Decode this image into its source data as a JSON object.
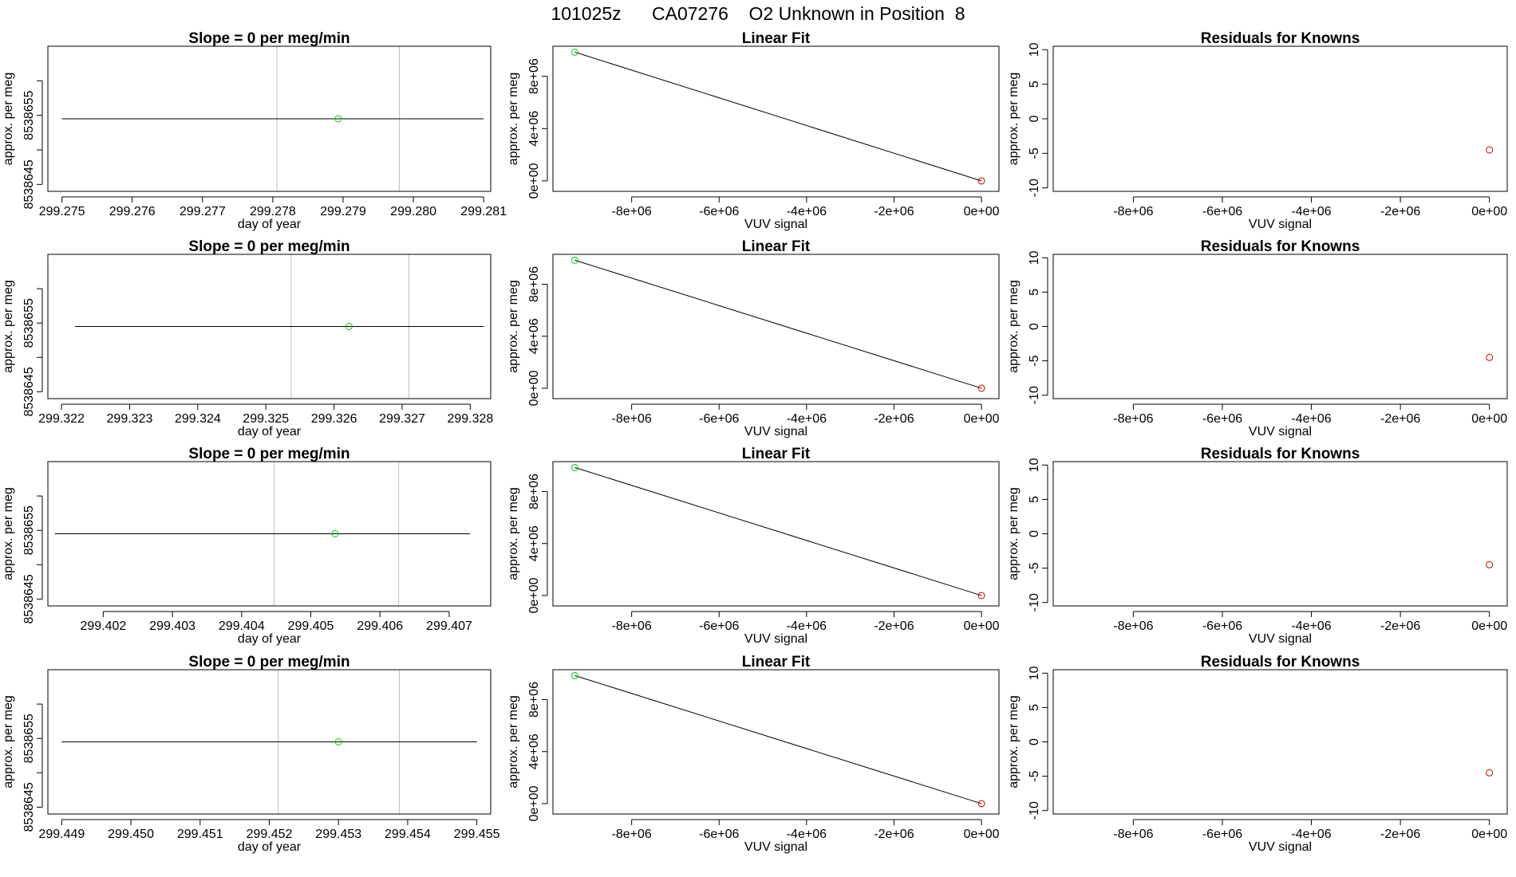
{
  "figure": {
    "title": "101025z      CA07276    O2 Unknown in Position  8",
    "colors": {
      "ink": "#000000",
      "grid": "#bebebe",
      "known": "#00cd00",
      "unknown": "#cd0000"
    }
  },
  "chart_data": [
    {
      "panel": "time",
      "row": 1,
      "type": "line",
      "title": "Slope =  0  per meg/min",
      "xlabel": "day of year",
      "ylabel": "approx. per meg",
      "xlim": [
        299.2748,
        299.2811
      ],
      "ylim": [
        8538644,
        8538665
      ],
      "x_ticks": [
        "299.275",
        "299.276",
        "299.277",
        "299.278",
        "299.279",
        "299.280",
        "299.281"
      ],
      "y_ticks": [
        "8538645",
        "8538655"
      ],
      "vlines": [
        299.27806,
        299.2798
      ],
      "fit_line": {
        "x": [
          299.275,
          299.281
        ],
        "y": [
          8538654.5,
          8538654.5
        ]
      },
      "points": [
        {
          "x": 299.27893,
          "y": 8538654.5,
          "color": "green"
        }
      ]
    },
    {
      "panel": "linear",
      "row": 1,
      "type": "scatter",
      "title": "Linear Fit",
      "xlabel": "VUV signal",
      "ylabel": "approx. per meg",
      "xlim": [
        -9800000.0,
        400000.0
      ],
      "ylim": [
        -800000.0,
        10300000.0
      ],
      "x_ticks": [
        "-8e+06",
        "-6e+06",
        "-4e+06",
        "-2e+06",
        "0e+00"
      ],
      "y_ticks": [
        "0e+00",
        "4e+06",
        "8e+06"
      ],
      "fit_line": {
        "x": [
          -9300000.0,
          0
        ],
        "y": [
          9850000.0,
          0
        ]
      },
      "points": [
        {
          "x": -9300000.0,
          "y": 9850000.0,
          "color": "green"
        },
        {
          "x": 0,
          "y": 0,
          "color": "red"
        }
      ]
    },
    {
      "panel": "residuals",
      "row": 1,
      "type": "scatter",
      "title": "Residuals for Knowns",
      "xlabel": "VUV signal",
      "ylabel": "approx. per meg",
      "xlim": [
        -9800000.0,
        400000.0
      ],
      "ylim": [
        -10.5,
        10.5
      ],
      "x_ticks": [
        "-8e+06",
        "-6e+06",
        "-4e+06",
        "-2e+06",
        "0e+00"
      ],
      "y_ticks": [
        "-10",
        "-5",
        "0",
        "5",
        "10"
      ],
      "points": [
        {
          "x": 0,
          "y": -4.5,
          "color": "red"
        }
      ]
    },
    {
      "panel": "time",
      "row": 2,
      "type": "line",
      "title": "Slope =  0  per meg/min",
      "xlabel": "day of year",
      "ylabel": "approx. per meg",
      "xlim": [
        299.3218,
        299.3283
      ],
      "ylim": [
        8538644,
        8538665
      ],
      "x_ticks": [
        "299.322",
        "299.323",
        "299.324",
        "299.325",
        "299.326",
        "299.327",
        "299.328"
      ],
      "y_ticks": [
        "8538645",
        "8538655"
      ],
      "vlines": [
        299.32537,
        299.3271
      ],
      "fit_line": {
        "x": [
          299.3222,
          299.3282
        ],
        "y": [
          8538654.5,
          8538654.5
        ]
      },
      "points": [
        {
          "x": 299.32622,
          "y": 8538654.5,
          "color": "green"
        }
      ]
    },
    {
      "panel": "linear",
      "row": 2,
      "type": "scatter",
      "title": "Linear Fit",
      "xlabel": "VUV signal",
      "ylabel": "approx. per meg",
      "xlim": [
        -9800000.0,
        400000.0
      ],
      "ylim": [
        -800000.0,
        10300000.0
      ],
      "x_ticks": [
        "-8e+06",
        "-6e+06",
        "-4e+06",
        "-2e+06",
        "0e+00"
      ],
      "y_ticks": [
        "0e+00",
        "4e+06",
        "8e+06"
      ],
      "fit_line": {
        "x": [
          -9300000.0,
          0
        ],
        "y": [
          9850000.0,
          0
        ]
      },
      "points": [
        {
          "x": -9300000.0,
          "y": 9850000.0,
          "color": "green"
        },
        {
          "x": 0,
          "y": 0,
          "color": "red"
        }
      ]
    },
    {
      "panel": "residuals",
      "row": 2,
      "type": "scatter",
      "title": "Residuals for Knowns",
      "xlabel": "VUV signal",
      "ylabel": "approx. per meg",
      "xlim": [
        -9800000.0,
        400000.0
      ],
      "ylim": [
        -10.5,
        10.5
      ],
      "x_ticks": [
        "-8e+06",
        "-6e+06",
        "-4e+06",
        "-2e+06",
        "0e+00"
      ],
      "y_ticks": [
        "-10",
        "-5",
        "0",
        "5",
        "10"
      ],
      "points": [
        {
          "x": 0,
          "y": -4.5,
          "color": "red"
        }
      ]
    },
    {
      "panel": "time",
      "row": 3,
      "type": "line",
      "title": "Slope =  0  per meg/min",
      "xlabel": "day of year",
      "ylabel": "approx. per meg",
      "xlim": [
        299.4012,
        299.4076
      ],
      "ylim": [
        8538644,
        8538665
      ],
      "x_ticks": [
        "299.402",
        "299.403",
        "299.404",
        "299.405",
        "299.406",
        "299.407"
      ],
      "y_ticks": [
        "8538645",
        "8538655"
      ],
      "vlines": [
        299.40447,
        299.40627
      ],
      "fit_line": {
        "x": [
          299.4013,
          299.4073
        ],
        "y": [
          8538654.5,
          8538654.5
        ]
      },
      "points": [
        {
          "x": 299.40535,
          "y": 8538654.5,
          "color": "green"
        }
      ]
    },
    {
      "panel": "linear",
      "row": 3,
      "type": "scatter",
      "title": "Linear Fit",
      "xlabel": "VUV signal",
      "ylabel": "approx. per meg",
      "xlim": [
        -9800000.0,
        400000.0
      ],
      "ylim": [
        -800000.0,
        10300000.0
      ],
      "x_ticks": [
        "-8e+06",
        "-6e+06",
        "-4e+06",
        "-2e+06",
        "0e+00"
      ],
      "y_ticks": [
        "0e+00",
        "4e+06",
        "8e+06"
      ],
      "fit_line": {
        "x": [
          -9300000.0,
          0
        ],
        "y": [
          9850000.0,
          0
        ]
      },
      "points": [
        {
          "x": -9300000.0,
          "y": 9850000.0,
          "color": "green"
        },
        {
          "x": 0,
          "y": 0,
          "color": "red"
        }
      ]
    },
    {
      "panel": "residuals",
      "row": 3,
      "type": "scatter",
      "title": "Residuals for Knowns",
      "xlabel": "VUV signal",
      "ylabel": "approx. per meg",
      "xlim": [
        -9800000.0,
        400000.0
      ],
      "ylim": [
        -10.5,
        10.5
      ],
      "x_ticks": [
        "-8e+06",
        "-6e+06",
        "-4e+06",
        "-2e+06",
        "0e+00"
      ],
      "y_ticks": [
        "-10",
        "-5",
        "0",
        "5",
        "10"
      ],
      "points": [
        {
          "x": 0,
          "y": -4.5,
          "color": "red"
        }
      ]
    },
    {
      "panel": "time",
      "row": 4,
      "type": "line",
      "title": "Slope =  0  per meg/min",
      "xlabel": "day of year",
      "ylabel": "approx. per meg",
      "xlim": [
        299.4488,
        299.4552
      ],
      "ylim": [
        8538644,
        8538665
      ],
      "x_ticks": [
        "299.449",
        "299.450",
        "299.451",
        "299.452",
        "299.453",
        "299.454",
        "299.455"
      ],
      "y_ticks": [
        "8538645",
        "8538655"
      ],
      "vlines": [
        299.45213,
        299.45388
      ],
      "fit_line": {
        "x": [
          299.449,
          299.455
        ],
        "y": [
          8538654.5,
          8538654.5
        ]
      },
      "points": [
        {
          "x": 299.453,
          "y": 8538654.5,
          "color": "green"
        }
      ]
    },
    {
      "panel": "linear",
      "row": 4,
      "type": "scatter",
      "title": "Linear Fit",
      "xlabel": "VUV signal",
      "ylabel": "approx. per meg",
      "xlim": [
        -9800000.0,
        400000.0
      ],
      "ylim": [
        -800000.0,
        10300000.0
      ],
      "x_ticks": [
        "-8e+06",
        "-6e+06",
        "-4e+06",
        "-2e+06",
        "0e+00"
      ],
      "y_ticks": [
        "0e+00",
        "4e+06",
        "8e+06"
      ],
      "fit_line": {
        "x": [
          -9300000.0,
          0
        ],
        "y": [
          9850000.0,
          0
        ]
      },
      "points": [
        {
          "x": -9300000.0,
          "y": 9850000.0,
          "color": "green"
        },
        {
          "x": 0,
          "y": 0,
          "color": "red"
        }
      ]
    },
    {
      "panel": "residuals",
      "row": 4,
      "type": "scatter",
      "title": "Residuals for Knowns",
      "xlabel": "VUV signal",
      "ylabel": "approx. per meg",
      "xlim": [
        -9800000.0,
        400000.0
      ],
      "ylim": [
        -10.5,
        10.5
      ],
      "x_ticks": [
        "-8e+06",
        "-6e+06",
        "-4e+06",
        "-2e+06",
        "0e+00"
      ],
      "y_ticks": [
        "-10",
        "-5",
        "0",
        "5",
        "10"
      ],
      "points": [
        {
          "x": 0,
          "y": -4.5,
          "color": "red"
        }
      ]
    }
  ]
}
